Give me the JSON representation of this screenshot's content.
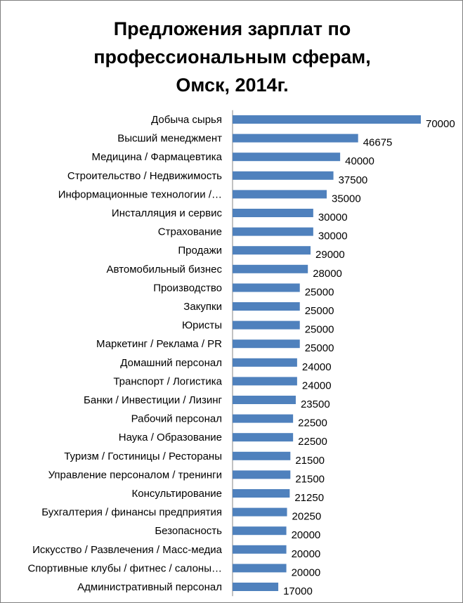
{
  "chart_data": {
    "type": "bar",
    "orientation": "horizontal",
    "title": "Предложения зарплат по профессиональным сферам, Омск, 2014г.",
    "title_lines": [
      "Предложения зарплат по",
      "профессиональным сферам,",
      "Омск, 2014г."
    ],
    "xlabel": "",
    "ylabel": "",
    "bar_color": "#4f81bd",
    "xlim": [
      0,
      70000
    ],
    "grid": false,
    "legend": "none",
    "categories": [
      "Добыча сырья",
      "Высший менеджмент",
      "Медицина / Фармацевтика",
      "Строительство / Недвижимость",
      "Информационные технологии /…",
      "Инсталляция и сервис",
      "Страхование",
      "Продажи",
      "Автомобильный бизнес",
      "Производство",
      "Закупки",
      "Юристы",
      "Маркетинг / Реклама / PR",
      "Домашний персонал",
      "Транспорт / Логистика",
      "Банки / Инвестиции / Лизинг",
      "Рабочий персонал",
      "Наука / Образование",
      "Туризм / Гостиницы / Рестораны",
      "Управление персоналом / тренинги",
      "Консультирование",
      "Бухгалтерия / финансы предприятия",
      "Безопасность",
      "Искусство / Развлечения / Масс-медиа",
      "Спортивные клубы / фитнес / салоны…",
      "Административный персонал"
    ],
    "values": [
      70000,
      46675,
      40000,
      37500,
      35000,
      30000,
      30000,
      29000,
      28000,
      25000,
      25000,
      25000,
      25000,
      24000,
      24000,
      23500,
      22500,
      22500,
      21500,
      21500,
      21250,
      20250,
      20000,
      20000,
      20000,
      17000
    ]
  }
}
